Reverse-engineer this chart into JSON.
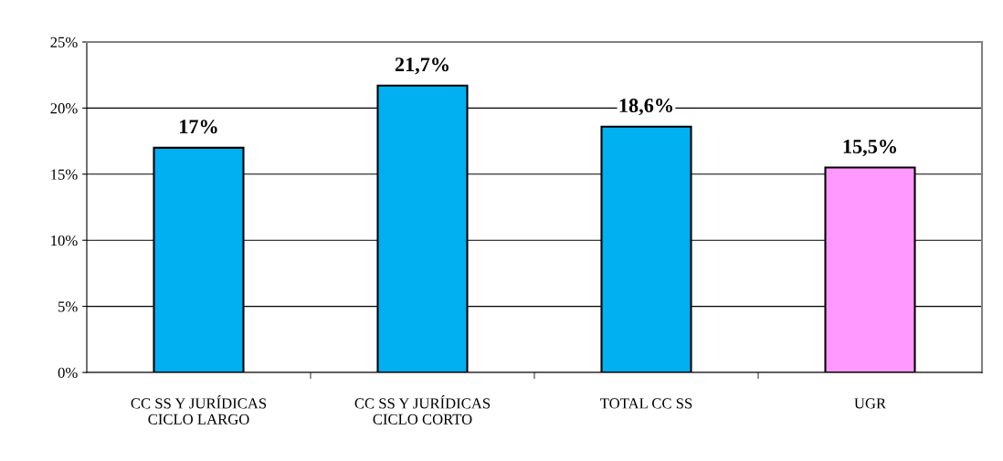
{
  "chart_data": {
    "type": "bar",
    "categories": [
      "CC SS Y JURÍDICAS\nCICLO LARGO",
      "CC SS Y JURÍDICAS\nCICLO CORTO",
      "TOTAL CC SS",
      "UGR"
    ],
    "values": [
      17,
      21.7,
      18.6,
      15.5
    ],
    "colors": [
      "#00b0f0",
      "#00b0f0",
      "#00b0f0",
      "#ff99ff"
    ],
    "value_labels": [
      "17%",
      "21,7%",
      "18,6%",
      "15,5%"
    ],
    "ylim": [
      0,
      25
    ],
    "yticks": [
      {
        "value": 0,
        "label": "0%"
      },
      {
        "value": 5,
        "label": "5%"
      },
      {
        "value": 10,
        "label": "10%"
      },
      {
        "value": 15,
        "label": "15%"
      },
      {
        "value": 20,
        "label": "20%"
      },
      {
        "value": 25,
        "label": "25%"
      }
    ],
    "grid": "y",
    "legend": false
  }
}
